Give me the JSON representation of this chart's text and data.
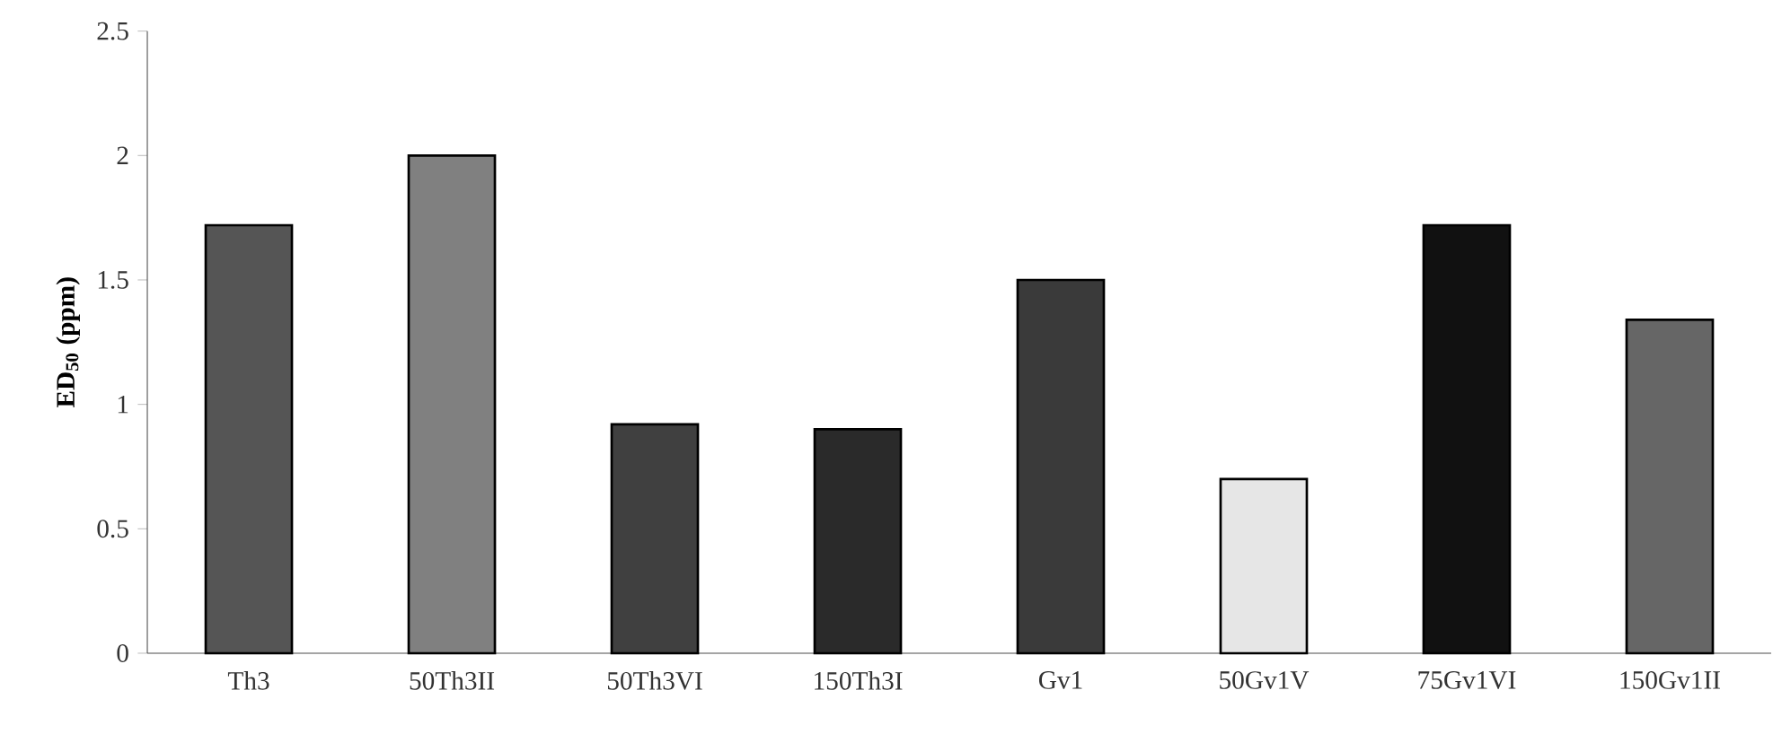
{
  "chart_data": {
    "type": "bar",
    "ylabel": "ED$_{50}$ (ppm)",
    "categories": [
      "Th3",
      "50Th3II",
      "50Th3VI",
      "150Th3I",
      "Gv1",
      "50Gv1V",
      "75Gv1VI",
      "150Gv1II"
    ],
    "values": [
      1.72,
      2.0,
      0.92,
      0.9,
      1.5,
      0.7,
      1.72,
      1.34
    ],
    "colors": [
      "#555555",
      "#808080",
      "#404040",
      "#2a2a2a",
      "#3a3a3a",
      "#e6e6e6",
      "#111111",
      "#666666"
    ],
    "ylim": [
      0,
      2.5
    ],
    "yticks": [
      0,
      0.5,
      1,
      1.5,
      2,
      2.5
    ],
    "grid": false
  }
}
